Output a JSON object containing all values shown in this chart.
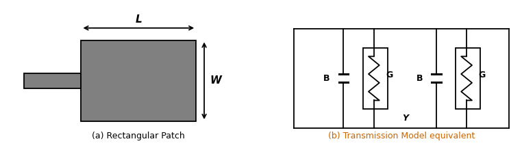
{
  "bg_color": "#ffffff",
  "patch_color": "#808080",
  "line_color": "#000000",
  "text_color": "#000000",
  "label_color": "#cc6600",
  "fig_width": 7.62,
  "fig_height": 2.16,
  "caption_a": "(a) Rectangular Patch",
  "caption_b": "(b) Transmission Model equivalent",
  "label_L": "L",
  "label_W": "W",
  "label_B1": "B",
  "label_G1": "G",
  "label_B2": "B",
  "label_G2": "G",
  "label_Y": "Y"
}
